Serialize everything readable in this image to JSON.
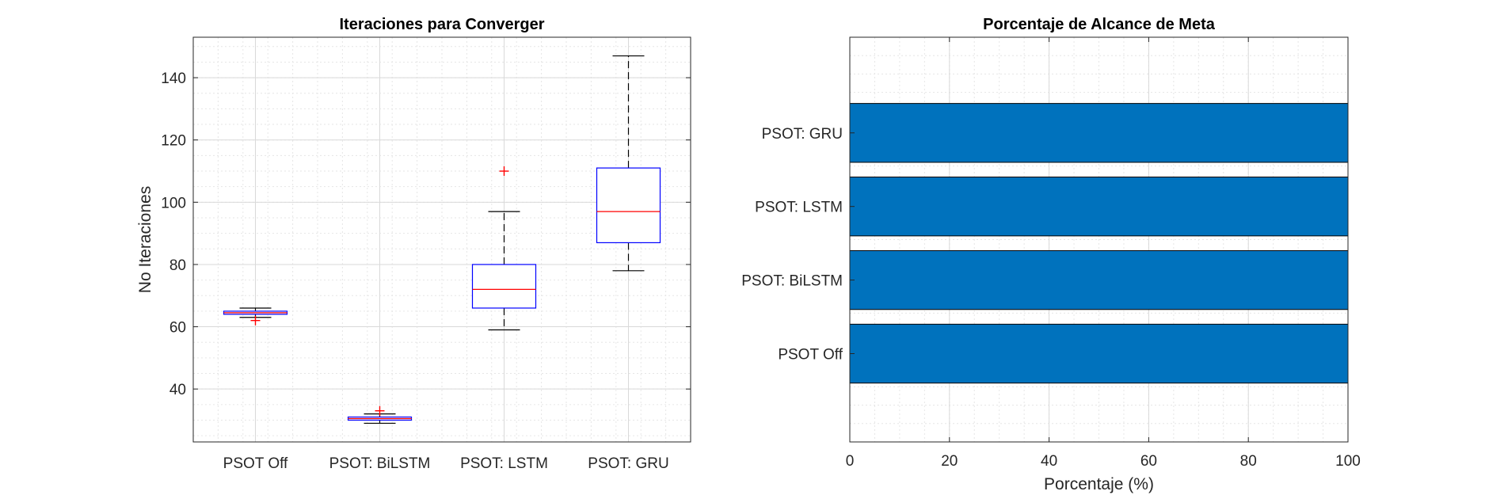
{
  "chart_data": [
    {
      "type": "boxplot",
      "title": "Iteraciones para Converger",
      "xlabel": "",
      "ylabel": "No Iteraciones",
      "ylim": [
        23,
        153
      ],
      "yticks": [
        40,
        60,
        80,
        100,
        120,
        140
      ],
      "grid": true,
      "minor_grid": true,
      "categories": [
        "PSOT Off",
        "PSOT: BiLSTM",
        "PSOT: LSTM",
        "PSOT: GRU"
      ],
      "boxes": [
        {
          "whisker_low": 63,
          "q1": 64,
          "median": 64.5,
          "q3": 65,
          "whisker_high": 66,
          "outliers": [
            62
          ]
        },
        {
          "whisker_low": 29,
          "q1": 30,
          "median": 30.5,
          "q3": 31,
          "whisker_high": 32,
          "outliers": [
            33
          ]
        },
        {
          "whisker_low": 59,
          "q1": 66,
          "median": 72,
          "q3": 80,
          "whisker_high": 97,
          "outliers": [
            110
          ]
        },
        {
          "whisker_low": 78,
          "q1": 87,
          "median": 97,
          "q3": 111,
          "whisker_high": 147,
          "outliers": []
        }
      ],
      "colors": {
        "box": "#0000ff",
        "median": "#ff0000",
        "whisker": "#000000",
        "outlier": "#ff0000"
      }
    },
    {
      "type": "bar",
      "orientation": "horizontal",
      "title": "Porcentaje de Alcance de Meta",
      "xlabel": "Porcentaje (%)",
      "ylabel": "",
      "xlim": [
        0,
        100
      ],
      "xticks": [
        0,
        20,
        40,
        60,
        80,
        100
      ],
      "grid": true,
      "minor_grid": true,
      "categories": [
        "PSOT Off",
        "PSOT: BiLSTM",
        "PSOT: LSTM",
        "PSOT: GRU"
      ],
      "values": [
        100,
        100,
        100,
        100
      ],
      "colors": {
        "bar": "#0072bd",
        "edge": "#000000"
      }
    }
  ]
}
